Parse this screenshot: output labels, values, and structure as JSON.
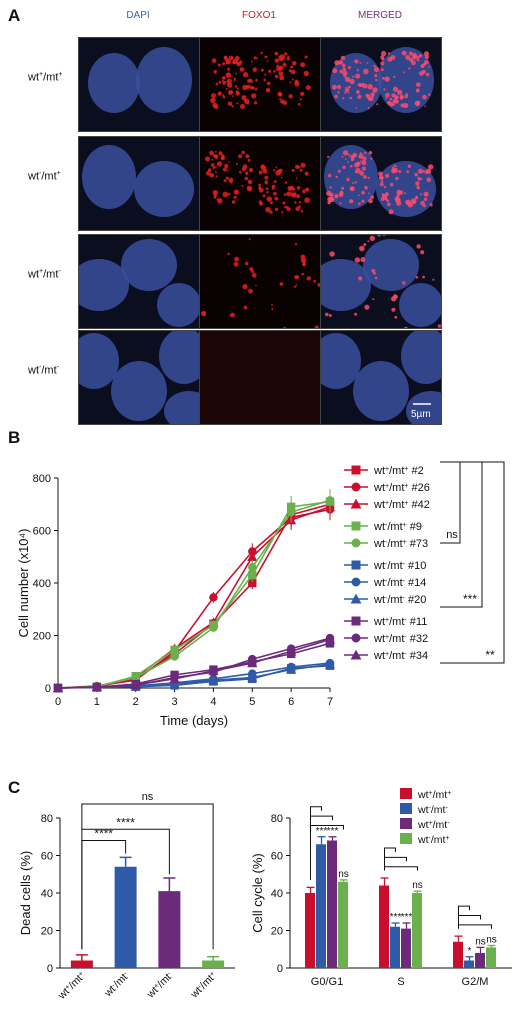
{
  "panelA": {
    "letter": "A",
    "columns": [
      "DAPI",
      "FOXO1",
      "MERGED"
    ],
    "column_colors": [
      "#3a5fb5",
      "#d11a1a",
      "#7a2a80"
    ],
    "rows": [
      {
        "wt": "+",
        "mt": "+"
      },
      {
        "wt": "-",
        "mt": "+"
      },
      {
        "wt": "+",
        "mt": "-"
      },
      {
        "wt": "-",
        "mt": "-"
      }
    ],
    "scalebar": "5µm"
  },
  "panelB": {
    "letter": "B",
    "chart_data": {
      "type": "line",
      "xlabel": "Time (days)",
      "ylabel": "Cell number (x10⁴)",
      "x": [
        0,
        1,
        2,
        3,
        4,
        5,
        6,
        7
      ],
      "xlim": [
        0,
        7
      ],
      "ylim": [
        0,
        800
      ],
      "yticks": [
        0,
        200,
        400,
        600,
        800
      ],
      "grid": false,
      "legend": "right",
      "series": [
        {
          "wt": "+",
          "mt": "+",
          "id": "#2",
          "color": "#c8102e",
          "marker": "square",
          "values": [
            0,
            5,
            35,
            130,
            245,
            400,
            660,
            700
          ]
        },
        {
          "wt": "+",
          "mt": "+",
          "id": "#26",
          "color": "#c8102e",
          "marker": "circle",
          "values": [
            0,
            8,
            30,
            140,
            345,
            520,
            650,
            680
          ]
        },
        {
          "wt": "+",
          "mt": "+",
          "id": "#42",
          "color": "#c8102e",
          "marker": "triangle",
          "values": [
            0,
            5,
            40,
            150,
            250,
            500,
            640,
            690
          ]
        },
        {
          "wt": "-",
          "mt": "+",
          "id": "#9",
          "color": "#6ab04c",
          "marker": "square",
          "values": [
            0,
            5,
            45,
            145,
            240,
            430,
            690,
            710
          ]
        },
        {
          "wt": "-",
          "mt": "+",
          "id": "#73",
          "color": "#6ab04c",
          "marker": "circle",
          "values": [
            0,
            6,
            40,
            120,
            230,
            460,
            670,
            715
          ]
        },
        {
          "wt": "-",
          "mt": "-",
          "id": "#10",
          "color": "#2e5aa8",
          "marker": "square",
          "values": [
            0,
            2,
            5,
            10,
            25,
            35,
            75,
            85
          ]
        },
        {
          "wt": "-",
          "mt": "-",
          "id": "#14",
          "color": "#2e5aa8",
          "marker": "circle",
          "values": [
            0,
            2,
            8,
            20,
            35,
            55,
            80,
            95
          ]
        },
        {
          "wt": "-",
          "mt": "-",
          "id": "#20",
          "color": "#2e5aa8",
          "marker": "triangle",
          "values": [
            0,
            3,
            6,
            15,
            30,
            40,
            70,
            90
          ]
        },
        {
          "wt": "+",
          "mt": "-",
          "id": "#11",
          "color": "#6b2a7b",
          "marker": "square",
          "values": [
            0,
            3,
            15,
            50,
            70,
            100,
            130,
            170
          ]
        },
        {
          "wt": "+",
          "mt": "-",
          "id": "#32",
          "color": "#6b2a7b",
          "marker": "circle",
          "values": [
            0,
            4,
            10,
            40,
            60,
            110,
            150,
            190
          ]
        },
        {
          "wt": "+",
          "mt": "-",
          "id": "#34",
          "color": "#6b2a7b",
          "marker": "triangle",
          "values": [
            0,
            3,
            12,
            35,
            65,
            95,
            140,
            185
          ]
        }
      ],
      "significance": [
        {
          "label": "ns"
        },
        {
          "label": "***"
        },
        {
          "label": "**"
        }
      ]
    }
  },
  "panelC": {
    "letter": "C",
    "dead_chart": {
      "type": "bar",
      "ylabel": "Dead cells (%)",
      "ylim": [
        0,
        80
      ],
      "yticks": [
        0,
        20,
        40,
        60,
        80
      ],
      "categories": [
        {
          "wt": "+",
          "mt": "+"
        },
        {
          "wt": "-",
          "mt": "-"
        },
        {
          "wt": "+",
          "mt": "-"
        },
        {
          "wt": "-",
          "mt": "+"
        }
      ],
      "colors": [
        "#c8102e",
        "#2e5aa8",
        "#6b2a7b",
        "#6ab04c"
      ],
      "values": [
        4,
        54,
        41,
        4
      ],
      "errors": [
        3,
        5,
        7,
        2
      ],
      "brackets": [
        {
          "label": "ns"
        },
        {
          "label": "****"
        },
        {
          "label": "****"
        }
      ]
    },
    "cycle_chart": {
      "type": "bar",
      "ylabel": "Cell cycle (%)",
      "ylim": [
        0,
        80
      ],
      "yticks": [
        0,
        20,
        40,
        60,
        80
      ],
      "categories": [
        "G0/G1",
        "S",
        "G2/M"
      ],
      "series": [
        {
          "wt": "+",
          "mt": "+",
          "color": "#c8102e",
          "values": [
            40,
            44,
            14
          ],
          "errors": [
            3,
            4,
            3
          ]
        },
        {
          "wt": "-",
          "mt": "-",
          "color": "#2e5aa8",
          "values": [
            66,
            22,
            4
          ],
          "errors": [
            4,
            2,
            2
          ]
        },
        {
          "wt": "+",
          "mt": "-",
          "color": "#6b2a7b",
          "values": [
            68,
            21,
            8
          ],
          "errors": [
            2,
            3,
            3
          ]
        },
        {
          "wt": "-",
          "mt": "+",
          "color": "#6ab04c",
          "values": [
            46,
            40,
            11
          ],
          "errors": [
            1,
            1,
            1
          ]
        }
      ],
      "stars": [
        [
          "",
          "***",
          "***",
          "ns"
        ],
        [
          "",
          "***",
          "***",
          "ns"
        ],
        [
          "",
          "*",
          "ns",
          "ns"
        ]
      ],
      "legend": "top-right"
    }
  }
}
